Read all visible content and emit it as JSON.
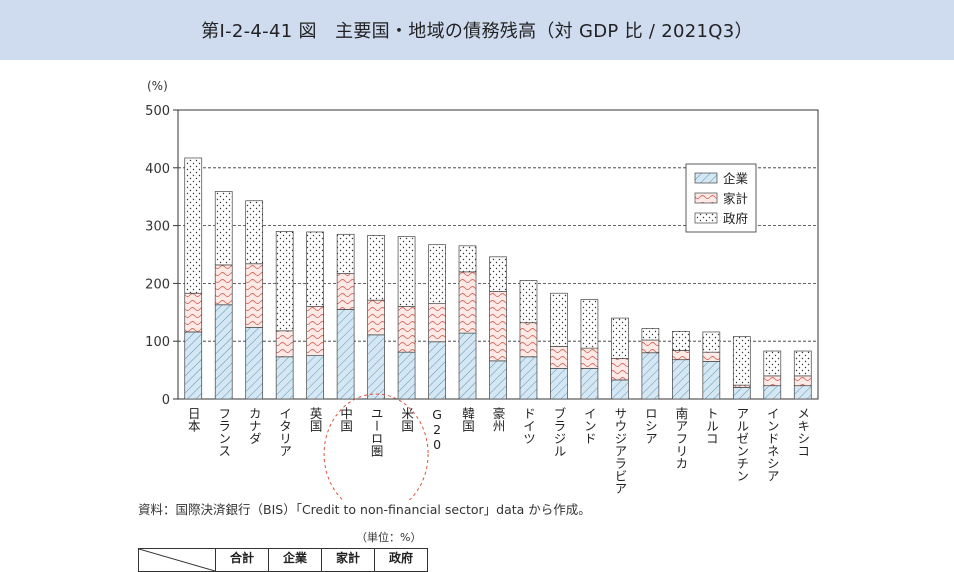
{
  "header": {
    "title": "第Ⅰ-2-4-41 図　主要国・地域の債務残高（対 GDP 比 / 2021Q3）"
  },
  "chart_data": {
    "type": "bar",
    "stacked": true,
    "ylabel": "(%)",
    "ylim": [
      0,
      500
    ],
    "yticks": [
      0,
      100,
      200,
      300,
      400,
      500
    ],
    "grid": "dashed horizontal at 100-400",
    "legend_position": "top-right",
    "categories": [
      "日本",
      "フランス",
      "カナダ",
      "イタリア",
      "英国",
      "中国",
      "ユーロ圏",
      "米国",
      "G20",
      "韓国",
      "豪州",
      "ドイツ",
      "ブラジル",
      "インド",
      "サウジアラビア",
      "ロシア",
      "南アフリカ",
      "トルコ",
      "アルゼンチン",
      "インドネシア",
      "メキシコ"
    ],
    "series": [
      {
        "name": "企業",
        "color": "#cfe3f0",
        "pattern": "diagonal-hatch",
        "values": [
          116,
          163,
          124,
          73,
          75,
          155,
          111,
          81,
          99,
          114,
          66,
          73,
          53,
          53,
          33,
          80,
          68,
          65,
          20,
          23,
          23
        ]
      },
      {
        "name": "家計",
        "color": "#fde6e1",
        "pattern": "wavy",
        "values": [
          67,
          69,
          110,
          45,
          85,
          62,
          60,
          79,
          66,
          106,
          120,
          59,
          38,
          35,
          37,
          22,
          16,
          16,
          4,
          17,
          17
        ]
      },
      {
        "name": "政府",
        "color": "#ffffff",
        "pattern": "dots",
        "values": [
          234,
          127,
          109,
          172,
          129,
          68,
          112,
          121,
          102,
          45,
          60,
          73,
          92,
          84,
          70,
          20,
          33,
          35,
          84,
          43,
          43
        ]
      }
    ],
    "annotation": "dashed circle highlighting 中国 / ユーロ圏 / 米国 labels"
  },
  "footer": {
    "source": "資料：国際決済銀行（BIS）「Credit to non-financial sector」data から作成。",
    "unit": "（単位：%）"
  },
  "table": {
    "headers": [
      "合計",
      "企業",
      "家計",
      "政府"
    ]
  }
}
